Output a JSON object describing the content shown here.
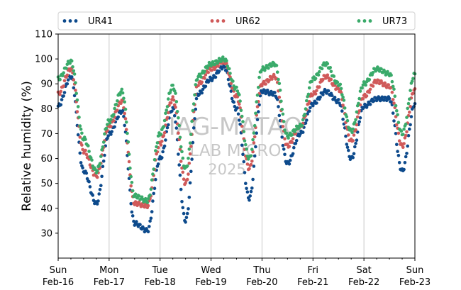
{
  "chart_data": {
    "type": "scatter",
    "ylabel": "Relative humidity (%)",
    "xlabel": "",
    "ylim": [
      20,
      110
    ],
    "yticks": [
      30,
      40,
      50,
      60,
      70,
      80,
      90,
      100,
      110
    ],
    "xlim": [
      "2025-02-16",
      "2025-02-23"
    ],
    "xtick_labels": [
      {
        "day": "Sun",
        "date": "Feb-16"
      },
      {
        "day": "Mon",
        "date": "Feb-17"
      },
      {
        "day": "Tue",
        "date": "Feb-18"
      },
      {
        "day": "Wed",
        "date": "Feb-19"
      },
      {
        "day": "Thu",
        "date": "Feb-20"
      },
      {
        "day": "Fri",
        "date": "Feb-21"
      },
      {
        "day": "Sat",
        "date": "Feb-22"
      },
      {
        "day": "Sun",
        "date": "Feb-23"
      }
    ],
    "grid": "vertical lines at each day",
    "legend_position": "top",
    "watermark": [
      "IAG-MATAO",
      "LAB MICRO",
      "2025"
    ],
    "series": [
      {
        "name": "UR41",
        "color": "#0d4a8c",
        "x": [
          "2025-02-16 00:00",
          "2025-02-16 06:00",
          "2025-02-16 12:00",
          "2025-02-16 18:00",
          "2025-02-17 00:00",
          "2025-02-17 06:00",
          "2025-02-17 12:00",
          "2025-02-17 18:00",
          "2025-02-18 00:00",
          "2025-02-18 06:00",
          "2025-02-18 12:00",
          "2025-02-18 18:00",
          "2025-02-19 00:00",
          "2025-02-19 06:00",
          "2025-02-19 12:00",
          "2025-02-19 18:00",
          "2025-02-20 00:00",
          "2025-02-20 06:00",
          "2025-02-20 12:00",
          "2025-02-20 18:00",
          "2025-02-21 00:00",
          "2025-02-21 06:00",
          "2025-02-21 12:00",
          "2025-02-21 18:00",
          "2025-02-22 00:00",
          "2025-02-22 06:00",
          "2025-02-22 12:00",
          "2025-02-22 18:00",
          "2025-02-23 00:00"
        ],
        "values": [
          81,
          93,
          55,
          42,
          70,
          79,
          34,
          31,
          60,
          80,
          35,
          86,
          92,
          97,
          80,
          44,
          87,
          86,
          58,
          70,
          82,
          87,
          83,
          60,
          81,
          84,
          84,
          55,
          82
        ]
      },
      {
        "name": "UR62",
        "color": "#d05a5a",
        "x": [
          "2025-02-16 00:00",
          "2025-02-16 06:00",
          "2025-02-16 12:00",
          "2025-02-16 18:00",
          "2025-02-17 00:00",
          "2025-02-17 06:00",
          "2025-02-17 12:00",
          "2025-02-17 18:00",
          "2025-02-18 00:00",
          "2025-02-18 06:00",
          "2025-02-18 12:00",
          "2025-02-18 18:00",
          "2025-02-19 00:00",
          "2025-02-19 06:00",
          "2025-02-19 12:00",
          "2025-02-19 18:00",
          "2025-02-20 00:00",
          "2025-02-20 06:00",
          "2025-02-20 12:00",
          "2025-02-20 18:00",
          "2025-02-21 00:00",
          "2025-02-21 06:00",
          "2025-02-21 12:00",
          "2025-02-21 18:00",
          "2025-02-22 00:00",
          "2025-02-22 06:00",
          "2025-02-22 12:00",
          "2025-02-22 18:00",
          "2025-02-23 00:00"
        ],
        "values": [
          86,
          96,
          63,
          53,
          73,
          83,
          42,
          41,
          66,
          84,
          50,
          90,
          96,
          99,
          85,
          56,
          90,
          93,
          65,
          73,
          86,
          93,
          88,
          67,
          85,
          91,
          89,
          65,
          88
        ]
      },
      {
        "name": "UR73",
        "color": "#3aaa6a",
        "x": [
          "2025-02-16 00:00",
          "2025-02-16 06:00",
          "2025-02-16 12:00",
          "2025-02-16 18:00",
          "2025-02-17 00:00",
          "2025-02-17 06:00",
          "2025-02-17 12:00",
          "2025-02-17 18:00",
          "2025-02-18 00:00",
          "2025-02-18 06:00",
          "2025-02-18 12:00",
          "2025-02-18 18:00",
          "2025-02-19 00:00",
          "2025-02-19 06:00",
          "2025-02-19 12:00",
          "2025-02-19 18:00",
          "2025-02-20 00:00",
          "2025-02-20 06:00",
          "2025-02-20 12:00",
          "2025-02-20 18:00",
          "2025-02-21 00:00",
          "2025-02-21 06:00",
          "2025-02-21 12:00",
          "2025-02-21 18:00",
          "2025-02-22 00:00",
          "2025-02-22 06:00",
          "2025-02-22 12:00",
          "2025-02-22 18:00",
          "2025-02-23 00:00"
        ],
        "values": [
          92,
          99,
          68,
          55,
          75,
          87,
          45,
          43,
          70,
          89,
          56,
          93,
          98,
          100,
          88,
          60,
          96,
          98,
          69,
          73,
          92,
          98,
          90,
          71,
          90,
          96,
          94,
          70,
          94
        ]
      }
    ]
  }
}
